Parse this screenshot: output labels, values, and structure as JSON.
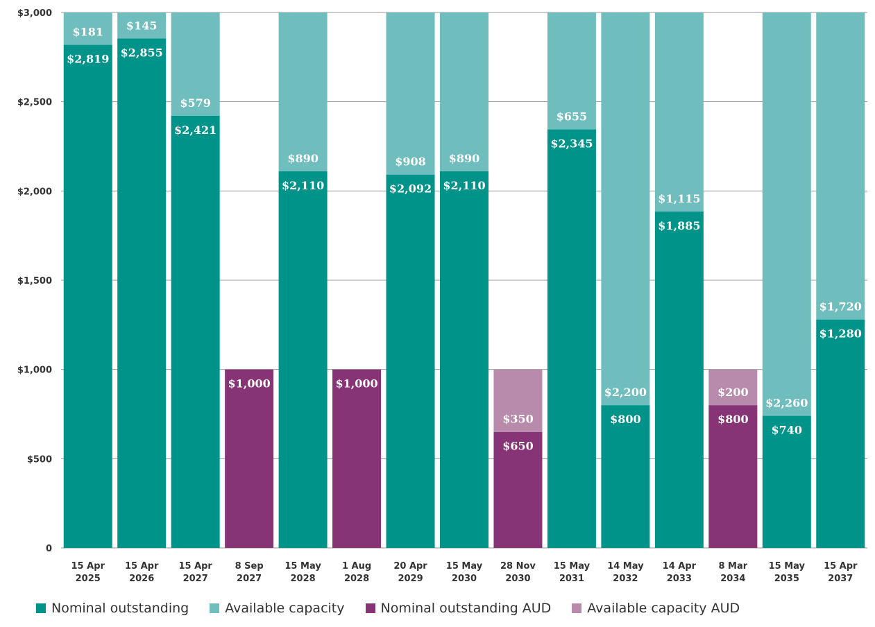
{
  "chart_data": {
    "type": "bar",
    "stacked": true,
    "title": "",
    "xlabel": "",
    "ylabel": "",
    "ylim": [
      0,
      3000
    ],
    "y_ticks": [
      0,
      500,
      1000,
      1500,
      2000,
      2500,
      3000
    ],
    "y_tick_labels": [
      "0",
      "$500",
      "$1,000",
      "$1,500",
      "$2,000",
      "$2,500",
      "$3,000"
    ],
    "grid": "horizontal",
    "legend_position": "bottom",
    "categories": [
      [
        "15 Apr",
        "2025"
      ],
      [
        "15 Apr",
        "2026"
      ],
      [
        "15 Apr",
        "2027"
      ],
      [
        "8 Sep",
        "2027"
      ],
      [
        "15 May",
        "2028"
      ],
      [
        "1 Aug",
        "2028"
      ],
      [
        "20 Apr",
        "2029"
      ],
      [
        "15 May",
        "2030"
      ],
      [
        "28 Nov",
        "2030"
      ],
      [
        "15 May",
        "2031"
      ],
      [
        "14 May",
        "2032"
      ],
      [
        "14 Apr",
        "2033"
      ],
      [
        "8 Mar",
        "2034"
      ],
      [
        "15 May",
        "2035"
      ],
      [
        "15 Apr",
        "2037"
      ]
    ],
    "bars": [
      {
        "outstanding": 2819,
        "outstanding_label": "$2,819",
        "capacity": 181,
        "capacity_label": "$181",
        "aud": false
      },
      {
        "outstanding": 2855,
        "outstanding_label": "$2,855",
        "capacity": 145,
        "capacity_label": "$145",
        "aud": false
      },
      {
        "outstanding": 2421,
        "outstanding_label": "$2,421",
        "capacity": 579,
        "capacity_label": "$579",
        "aud": false
      },
      {
        "outstanding": 1000,
        "outstanding_label": "$1,000",
        "capacity": 0,
        "capacity_label": "",
        "aud": true
      },
      {
        "outstanding": 2110,
        "outstanding_label": "$2,110",
        "capacity": 890,
        "capacity_label": "$890",
        "aud": false
      },
      {
        "outstanding": 1000,
        "outstanding_label": "$1,000",
        "capacity": 0,
        "capacity_label": "",
        "aud": true
      },
      {
        "outstanding": 2092,
        "outstanding_label": "$2,092",
        "capacity": 908,
        "capacity_label": "$908",
        "aud": false
      },
      {
        "outstanding": 2110,
        "outstanding_label": "$2,110",
        "capacity": 890,
        "capacity_label": "$890",
        "aud": false
      },
      {
        "outstanding": 650,
        "outstanding_label": "$650",
        "capacity": 350,
        "capacity_label": "$350",
        "aud": true
      },
      {
        "outstanding": 2345,
        "outstanding_label": "$2,345",
        "capacity": 655,
        "capacity_label": "$655",
        "aud": false
      },
      {
        "outstanding": 800,
        "outstanding_label": "$800",
        "capacity": 2200,
        "capacity_label": "$2,200",
        "aud": false
      },
      {
        "outstanding": 1885,
        "outstanding_label": "$1,885",
        "capacity": 1115,
        "capacity_label": "$1,115",
        "aud": false
      },
      {
        "outstanding": 800,
        "outstanding_label": "$800",
        "capacity": 200,
        "capacity_label": "$200",
        "aud": true
      },
      {
        "outstanding": 740,
        "outstanding_label": "$740",
        "capacity": 2260,
        "capacity_label": "$2,260",
        "aud": false
      },
      {
        "outstanding": 1280,
        "outstanding_label": "$1,280",
        "capacity": 1720,
        "capacity_label": "$1,720",
        "aud": false
      }
    ],
    "series": [
      {
        "name": "Nominal outstanding",
        "color": "#00938a"
      },
      {
        "name": "Available capacity",
        "color": "#6fbdbd"
      },
      {
        "name": "Nominal outstanding AUD",
        "color": "#873476"
      },
      {
        "name": "Available capacity AUD",
        "color": "#b88aab"
      }
    ]
  }
}
